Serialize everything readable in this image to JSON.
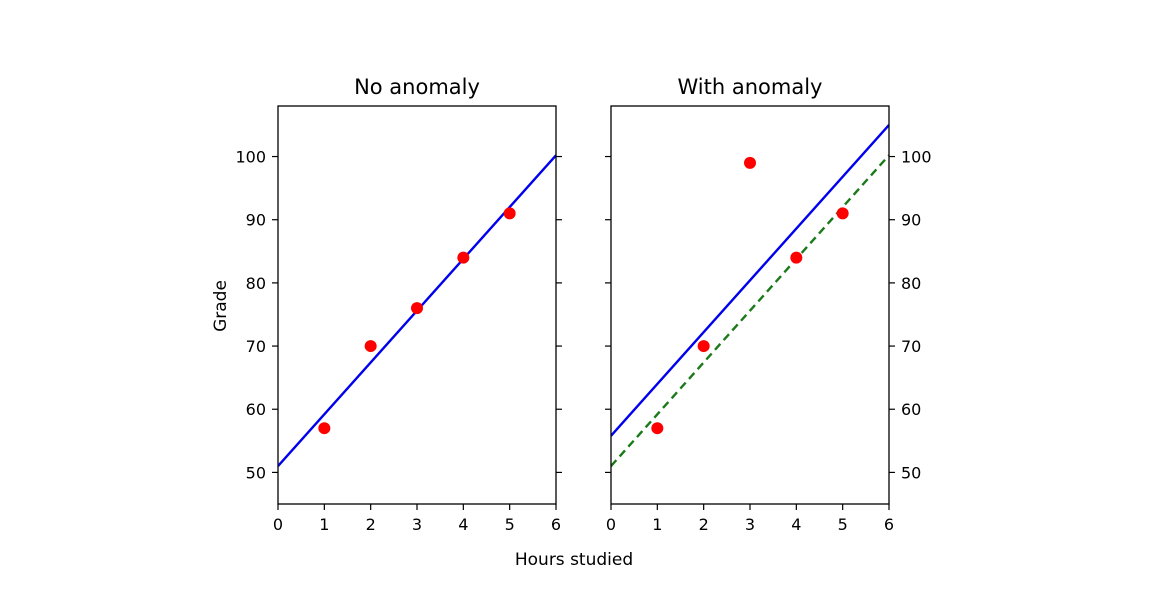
{
  "figure": {
    "xlabel": "Hours studied",
    "ylabel": "Grade",
    "colors": {
      "points": "#ff0000",
      "fit": "#0000ee",
      "fit_dashed": "#1a7a1a",
      "axes": "#000000"
    }
  },
  "chart_data": [
    {
      "type": "scatter",
      "title": "No anomaly",
      "xlim": [
        0,
        6
      ],
      "ylim": [
        45,
        108
      ],
      "xticks": [
        "0",
        "1",
        "2",
        "3",
        "4",
        "5",
        "6"
      ],
      "yticks": [
        "50",
        "60",
        "70",
        "80",
        "90",
        "100"
      ],
      "ytick_side": "left",
      "points": {
        "x": [
          1,
          2,
          3,
          4,
          5
        ],
        "y": [
          57,
          70,
          76,
          84,
          91
        ]
      },
      "lines": [
        {
          "style": "solid",
          "color": "#0000ee",
          "intercept": 51,
          "slope": 8.2
        }
      ]
    },
    {
      "type": "scatter",
      "title": "With anomaly",
      "xlim": [
        0,
        6
      ],
      "ylim": [
        45,
        108
      ],
      "xticks": [
        "0",
        "1",
        "2",
        "3",
        "4",
        "5",
        "6"
      ],
      "yticks": [
        "50",
        "60",
        "70",
        "80",
        "90",
        "100"
      ],
      "ytick_side": "right",
      "points": {
        "x": [
          1,
          2,
          3,
          4,
          5
        ],
        "y": [
          57,
          70,
          99,
          84,
          91
        ]
      },
      "lines": [
        {
          "style": "solid",
          "color": "#0000ee",
          "intercept": 55.8,
          "slope": 8.2
        },
        {
          "style": "dashed",
          "color": "#1a7a1a",
          "intercept": 51,
          "slope": 8.2
        }
      ]
    }
  ]
}
